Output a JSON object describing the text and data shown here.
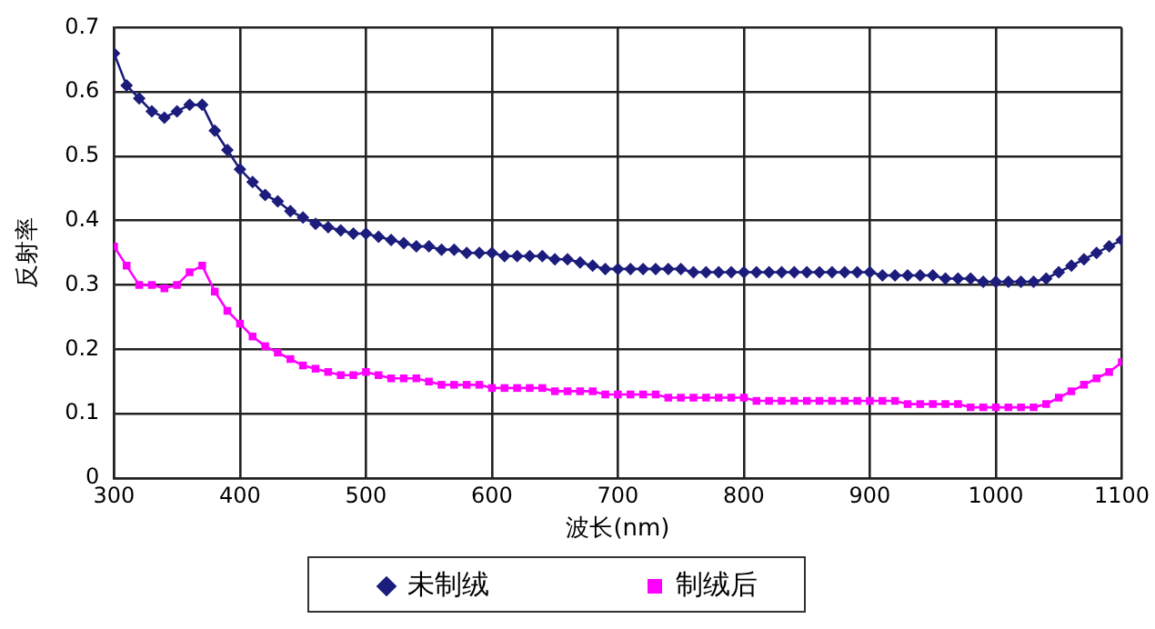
{
  "chart_data": {
    "type": "line",
    "xlabel": "波长(nm)",
    "ylabel": "反射率",
    "x": [
      300,
      310,
      320,
      330,
      340,
      350,
      360,
      370,
      380,
      390,
      400,
      410,
      420,
      430,
      440,
      450,
      460,
      470,
      480,
      490,
      500,
      510,
      520,
      530,
      540,
      550,
      560,
      570,
      580,
      590,
      600,
      610,
      620,
      630,
      640,
      650,
      660,
      670,
      680,
      690,
      700,
      710,
      720,
      730,
      740,
      750,
      760,
      770,
      780,
      790,
      800,
      810,
      820,
      830,
      840,
      850,
      860,
      870,
      880,
      890,
      900,
      910,
      920,
      930,
      940,
      950,
      960,
      970,
      980,
      990,
      1000,
      1010,
      1020,
      1030,
      1040,
      1050,
      1060,
      1070,
      1080,
      1090,
      1100
    ],
    "series": [
      {
        "name": "未制绒",
        "color": "#1c1c7c",
        "marker": "diamond",
        "values": [
          0.66,
          0.61,
          0.59,
          0.57,
          0.56,
          0.57,
          0.58,
          0.58,
          0.54,
          0.51,
          0.48,
          0.46,
          0.44,
          0.43,
          0.415,
          0.405,
          0.395,
          0.39,
          0.385,
          0.38,
          0.38,
          0.375,
          0.37,
          0.365,
          0.36,
          0.36,
          0.355,
          0.355,
          0.35,
          0.35,
          0.35,
          0.345,
          0.345,
          0.345,
          0.345,
          0.34,
          0.34,
          0.335,
          0.33,
          0.325,
          0.325,
          0.325,
          0.325,
          0.325,
          0.325,
          0.325,
          0.32,
          0.32,
          0.32,
          0.32,
          0.32,
          0.32,
          0.32,
          0.32,
          0.32,
          0.32,
          0.32,
          0.32,
          0.32,
          0.32,
          0.32,
          0.315,
          0.315,
          0.315,
          0.315,
          0.315,
          0.31,
          0.31,
          0.31,
          0.305,
          0.305,
          0.305,
          0.305,
          0.305,
          0.31,
          0.32,
          0.33,
          0.34,
          0.35,
          0.36,
          0.37
        ]
      },
      {
        "name": "制绒后",
        "color": "#ff00ff",
        "marker": "square",
        "values": [
          0.36,
          0.33,
          0.3,
          0.3,
          0.295,
          0.3,
          0.32,
          0.33,
          0.29,
          0.26,
          0.24,
          0.22,
          0.205,
          0.195,
          0.185,
          0.175,
          0.17,
          0.165,
          0.16,
          0.16,
          0.165,
          0.16,
          0.155,
          0.155,
          0.155,
          0.15,
          0.145,
          0.145,
          0.145,
          0.145,
          0.14,
          0.14,
          0.14,
          0.14,
          0.14,
          0.135,
          0.135,
          0.135,
          0.135,
          0.13,
          0.13,
          0.13,
          0.13,
          0.13,
          0.125,
          0.125,
          0.125,
          0.125,
          0.125,
          0.125,
          0.125,
          0.12,
          0.12,
          0.12,
          0.12,
          0.12,
          0.12,
          0.12,
          0.12,
          0.12,
          0.12,
          0.12,
          0.12,
          0.115,
          0.115,
          0.115,
          0.115,
          0.115,
          0.11,
          0.11,
          0.11,
          0.11,
          0.11,
          0.11,
          0.115,
          0.125,
          0.135,
          0.145,
          0.155,
          0.165,
          0.18
        ]
      }
    ],
    "xlim": [
      300,
      1100
    ],
    "xticks": [
      300,
      400,
      500,
      600,
      700,
      800,
      900,
      1000,
      1100
    ],
    "ylim": [
      0,
      0.7
    ],
    "yticks": [
      0,
      0.1,
      0.2,
      0.3,
      0.4,
      0.5,
      0.6,
      0.7
    ],
    "grid": true,
    "legend": "bottom",
    "line_style": "solid"
  }
}
